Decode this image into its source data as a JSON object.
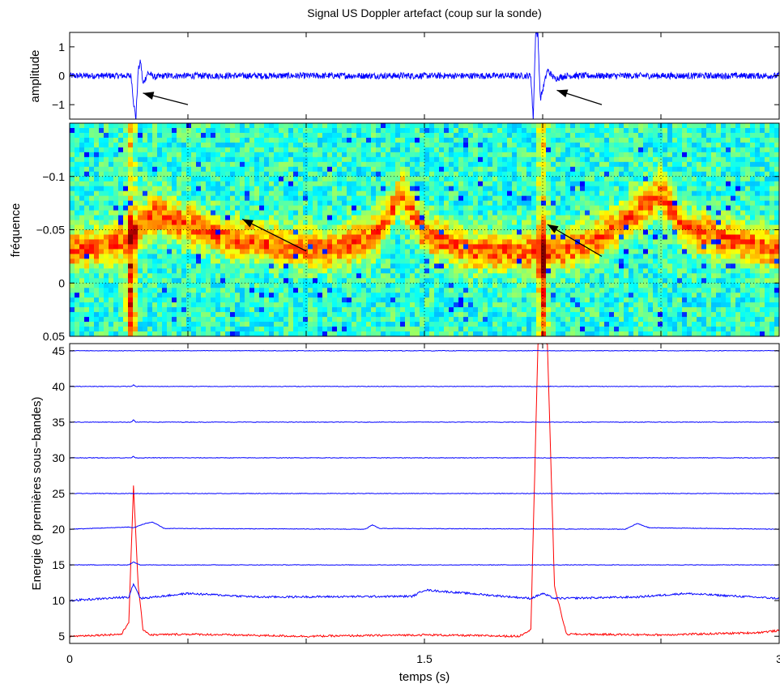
{
  "figure": {
    "title": "Signal US Doppler artefact (coup sur la sonde)",
    "xlabel": "temps (s)"
  },
  "chart_data": [
    {
      "type": "line",
      "panel": "amplitude",
      "ylabel": "amplitude",
      "xlim": [
        0,
        3
      ],
      "ylim": [
        -1.5,
        1.5
      ],
      "yticks": [
        1,
        0,
        -1
      ],
      "ytick_labels": [
        "1",
        "0",
        "−1"
      ],
      "grid": false,
      "series": [
        {
          "color": "#0000ff",
          "x": [
            0,
            0.26,
            0.27,
            0.28,
            0.29,
            0.3,
            0.31,
            0.33,
            0.36,
            0.4,
            1.0,
            1.95,
            1.96,
            1.97,
            1.98,
            1.99,
            2.0,
            2.02,
            2.05,
            2.1,
            3.0
          ],
          "values": [
            0,
            0,
            -0.9,
            -1.5,
            0.2,
            0.5,
            -0.3,
            0.1,
            -0.05,
            0,
            0,
            0,
            -1.5,
            1.5,
            1.4,
            -0.8,
            -0.5,
            0.2,
            -0.1,
            0,
            0
          ]
        }
      ],
      "annotations": [
        {
          "type": "arrow",
          "from": [
            0.5,
            -1.0
          ],
          "to": [
            0.31,
            -0.6
          ]
        },
        {
          "type": "arrow",
          "from": [
            2.25,
            -1.0
          ],
          "to": [
            2.06,
            -0.5
          ]
        }
      ]
    },
    {
      "type": "heatmap",
      "panel": "spectrogram",
      "ylabel": "fréquence",
      "xlim": [
        0,
        3
      ],
      "ylim": [
        0.05,
        -0.15
      ],
      "yticks": [
        -0.1,
        -0.05,
        0,
        0.05
      ],
      "ytick_labels": [
        "−0.1",
        "−0.05",
        "0",
        "0.05"
      ],
      "grid": true,
      "colormap": "jet",
      "ridge": {
        "x": [
          0,
          0.25,
          0.35,
          0.5,
          0.7,
          0.9,
          1.1,
          1.3,
          1.4,
          1.5,
          1.7,
          1.9,
          2.0,
          2.1,
          2.3,
          2.5,
          2.6,
          2.8,
          3.0
        ],
        "center": [
          -0.03,
          -0.04,
          -0.065,
          -0.055,
          -0.04,
          -0.035,
          -0.03,
          -0.045,
          -0.085,
          -0.045,
          -0.03,
          -0.03,
          -0.03,
          -0.03,
          -0.05,
          -0.085,
          -0.05,
          -0.04,
          -0.03
        ]
      },
      "transient_columns": [
        0.26,
        2.0
      ],
      "annotations": [
        {
          "type": "arrow",
          "from": [
            1.0,
            -0.03
          ],
          "to": [
            0.73,
            -0.06
          ]
        },
        {
          "type": "arrow",
          "from": [
            2.25,
            -0.025
          ],
          "to": [
            2.02,
            -0.055
          ]
        }
      ]
    },
    {
      "type": "line",
      "panel": "energy",
      "ylabel": "Energie (8 premières sous−bandes)",
      "xlim": [
        0,
        3
      ],
      "ylim": [
        4,
        46
      ],
      "yticks": [
        5,
        10,
        15,
        20,
        25,
        30,
        35,
        40,
        45
      ],
      "xticks": [
        0,
        1.5,
        3
      ],
      "xtick_labels": [
        "0",
        "1.5",
        "3"
      ],
      "grid": false,
      "series": [
        {
          "color": "#ff0000",
          "x": [
            0,
            0.22,
            0.25,
            0.27,
            0.29,
            0.31,
            0.34,
            0.5,
            1.0,
            1.5,
            1.9,
            1.95,
            1.98,
            2.0,
            2.02,
            2.05,
            2.1,
            2.5,
            2.9,
            3.0
          ],
          "values": [
            5,
            5.3,
            7,
            26,
            12,
            6,
            5.2,
            5.3,
            5,
            5.2,
            5,
            6,
            46,
            46,
            46,
            12,
            5.3,
            5.2,
            5.5,
            5.8
          ]
        },
        {
          "color": "#0000ff",
          "x": [
            0,
            0.25,
            0.27,
            0.3,
            0.5,
            0.8,
            1.45,
            1.5,
            1.95,
            2.0,
            2.05,
            2.4,
            2.6,
            3.0
          ],
          "values": [
            10,
            10.5,
            12.4,
            10.3,
            11,
            10.5,
            10.6,
            11.5,
            10.3,
            11,
            10.3,
            10.5,
            11,
            10.3
          ]
        },
        {
          "color": "#0000ff",
          "x": [
            0,
            0.25,
            0.27,
            0.3,
            3.0
          ],
          "values": [
            15,
            15,
            15.4,
            15,
            15
          ]
        },
        {
          "color": "#0000ff",
          "x": [
            0,
            0.25,
            0.27,
            0.32,
            0.35,
            0.4,
            1.25,
            1.28,
            1.31,
            2.35,
            2.4,
            2.45,
            3.0
          ],
          "values": [
            20,
            20.3,
            20.2,
            20.8,
            21,
            20.1,
            20,
            20.6,
            20.1,
            20,
            20.8,
            20.2,
            20
          ]
        },
        {
          "color": "#0000ff",
          "x": [
            0,
            3.0
          ],
          "values": [
            25,
            25
          ]
        },
        {
          "color": "#0000ff",
          "x": [
            0,
            0.26,
            0.27,
            0.28,
            3.0
          ],
          "values": [
            30,
            30,
            30.2,
            30,
            30
          ]
        },
        {
          "color": "#0000ff",
          "x": [
            0,
            0.26,
            0.27,
            0.28,
            3.0
          ],
          "values": [
            35,
            35,
            35.3,
            35,
            35
          ]
        },
        {
          "color": "#0000ff",
          "x": [
            0,
            0.26,
            0.27,
            0.28,
            3.0
          ],
          "values": [
            40,
            40,
            40.2,
            40,
            40
          ]
        },
        {
          "color": "#0000ff",
          "x": [
            0,
            3.0
          ],
          "values": [
            45,
            45
          ]
        }
      ]
    }
  ]
}
